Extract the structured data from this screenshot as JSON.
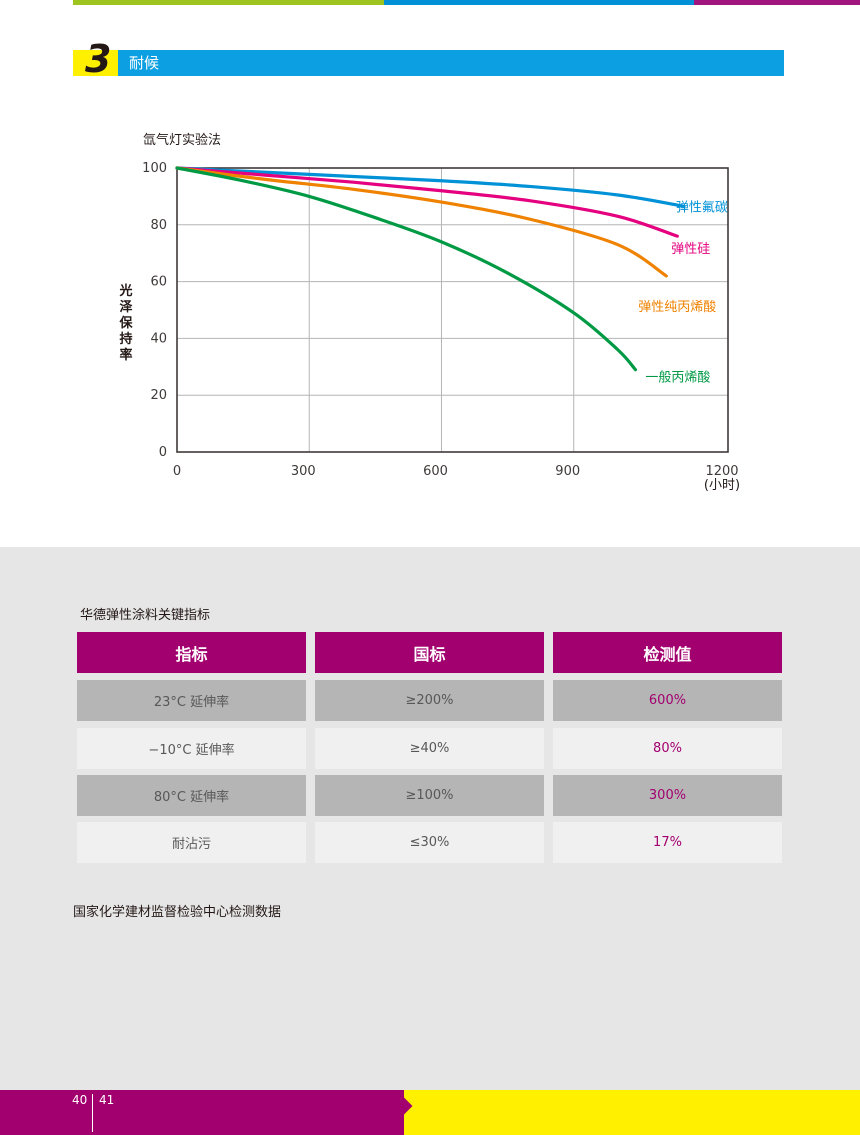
{
  "section": {
    "number": "3",
    "title": "耐候"
  },
  "chart": {
    "title": "氙气灯实验法",
    "ylabel_chars": [
      "光",
      "泽",
      "保",
      "持",
      "率"
    ],
    "unit_label": "(小时)"
  },
  "chart_data": {
    "type": "line",
    "title": "氙气灯实验法",
    "xlabel": "(小时)",
    "ylabel": "光泽保持率",
    "xlim": [
      0,
      1250
    ],
    "ylim": [
      0,
      100
    ],
    "xticks": [
      0,
      300,
      600,
      900,
      1200
    ],
    "yticks": [
      0,
      20,
      40,
      60,
      80,
      100
    ],
    "grid": true,
    "series": [
      {
        "name": "弹性氟碳",
        "color": "#0091d7",
        "x": [
          0,
          200,
          400,
          600,
          800,
          1000,
          1150
        ],
        "y": [
          100,
          98.5,
          97,
          95.5,
          93.5,
          90.5,
          86.5
        ]
      },
      {
        "name": "弹性硅",
        "color": "#e4007f",
        "x": [
          0,
          200,
          400,
          600,
          800,
          1000,
          1135
        ],
        "y": [
          100,
          97.5,
          95,
          92,
          88.5,
          83,
          76
        ]
      },
      {
        "name": "弹性纯丙烯酸",
        "color": "#ef8200",
        "x": [
          0,
          200,
          400,
          600,
          800,
          1000,
          1110
        ],
        "y": [
          100,
          96,
          92.5,
          88,
          82,
          73,
          62
        ]
      },
      {
        "name": "一般丙烯酸",
        "color": "#009944",
        "x": [
          0,
          150,
          300,
          450,
          600,
          750,
          900,
          1000,
          1040
        ],
        "y": [
          100,
          95.5,
          90,
          82.5,
          74,
          63,
          49,
          36,
          29
        ]
      }
    ]
  },
  "table": {
    "title": "华德弹性涂料关键指标",
    "headers": [
      "指标",
      "国标",
      "检测值"
    ],
    "rows": [
      [
        "23°C 延伸率",
        "≥200%",
        "600%"
      ],
      [
        "−10°C 延伸率",
        "≥40%",
        "80%"
      ],
      [
        "80°C 延伸率",
        "≥100%",
        "300%"
      ],
      [
        "耐沾污",
        "≤30%",
        "17%"
      ]
    ]
  },
  "source": "国家化学建材监督检验中心检测数据",
  "footer": {
    "page_left": "40",
    "page_right": "41"
  },
  "colors": {
    "magenta": "#a3006f",
    "cyan": "#0ca0e2",
    "yellow": "#fff000",
    "green": "#9ec51f",
    "gray_bg": "#e6e6e6"
  }
}
